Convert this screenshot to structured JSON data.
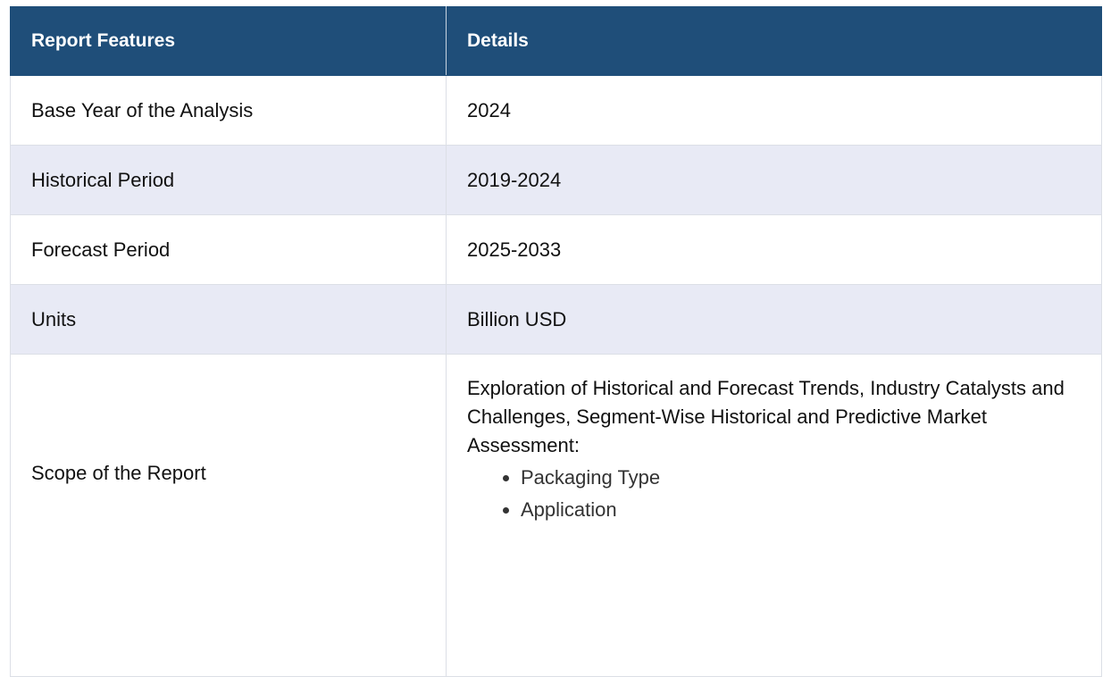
{
  "table": {
    "headers": [
      "Report Features",
      "Details"
    ],
    "rows": [
      {
        "feature": "Base Year of the Analysis",
        "detail": "2024"
      },
      {
        "feature": "Historical Period",
        "detail": "2019-2024"
      },
      {
        "feature": "Forecast Period",
        "detail": "2025-2033"
      },
      {
        "feature": "Units",
        "detail": "Billion USD"
      }
    ],
    "scope": {
      "feature": "Scope of the Report",
      "detail": "Exploration of Historical and Forecast Trends, Industry Catalysts and Challenges, Segment-Wise Historical and Predictive Market Assessment:",
      "bullets": [
        "Packaging Type",
        "Application"
      ]
    }
  },
  "colors": {
    "header_bg": "#1f4e79",
    "alt_row_bg": "#e8eaf5"
  }
}
